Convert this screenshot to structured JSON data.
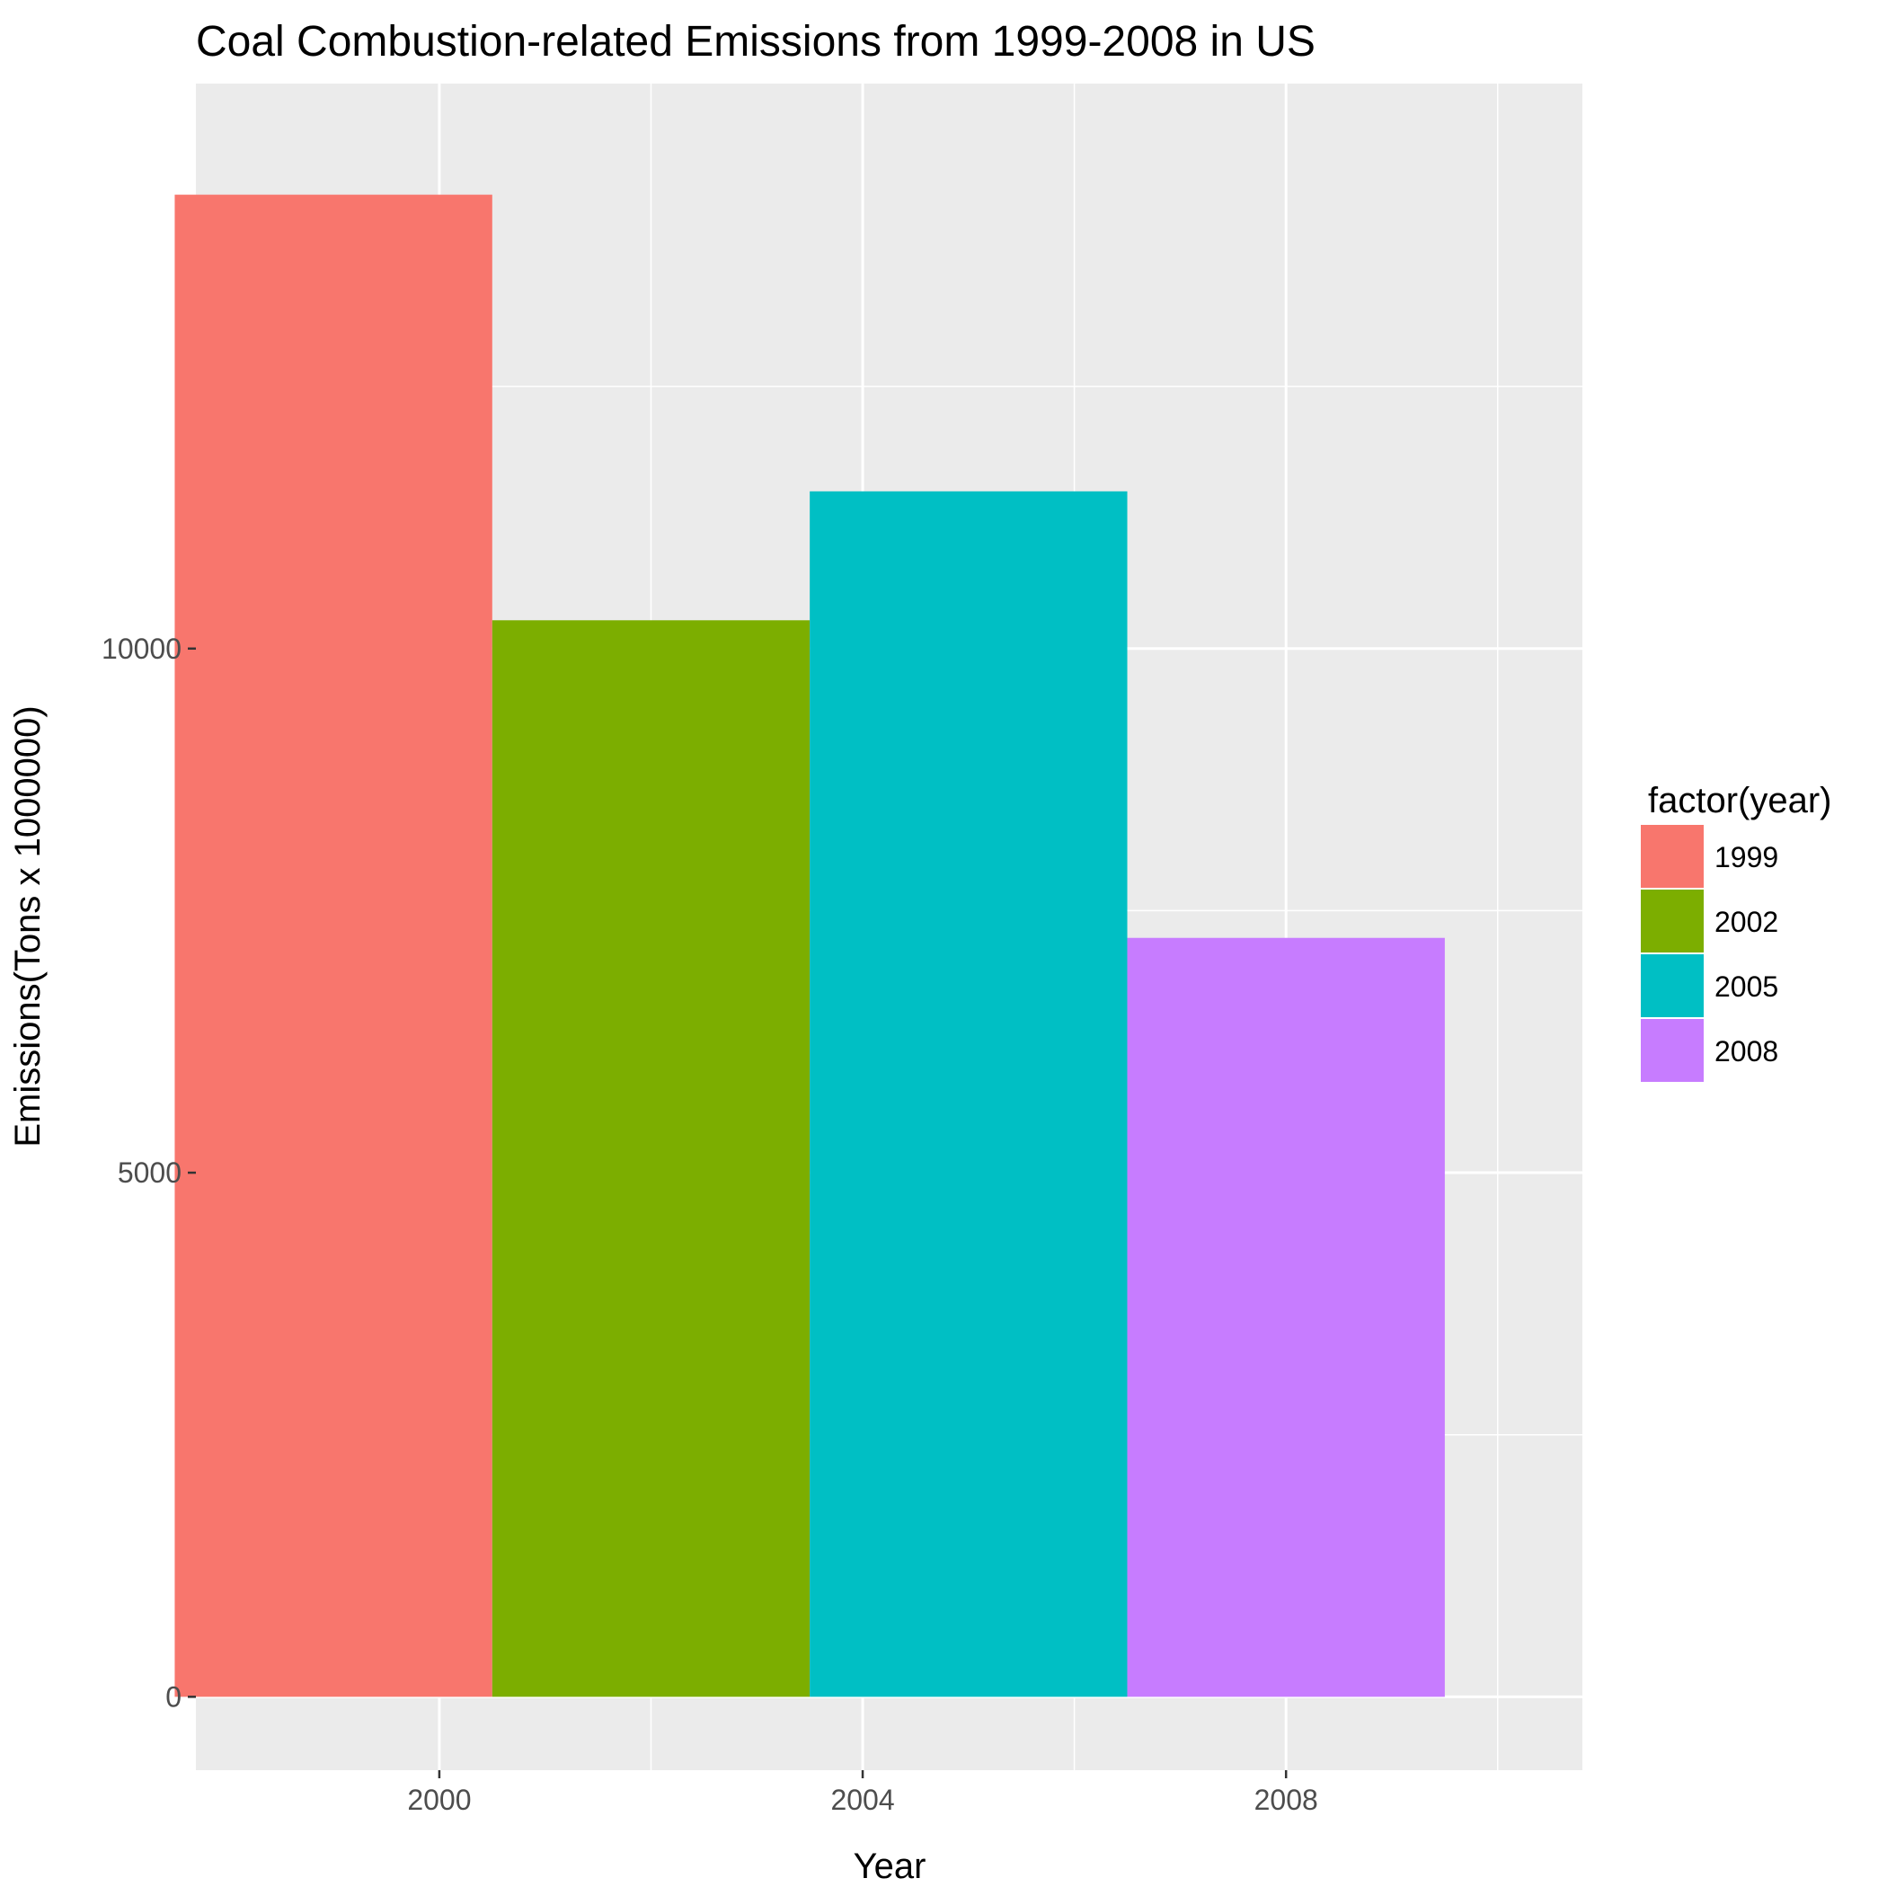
{
  "chart_data": {
    "type": "bar",
    "title": "Coal Combustion-related Emissions from 1999-2008 in US",
    "xlabel": "Year",
    "ylabel": "Emissions(Tons x 1000000)",
    "x": [
      1999,
      2002,
      2005,
      2008
    ],
    "values": [
      14330,
      10270,
      11500,
      7240
    ],
    "bar_width_years": 3,
    "fill_categories": [
      "1999",
      "2002",
      "2005",
      "2008"
    ],
    "colors": [
      "#F8766D",
      "#7CAE00",
      "#00BFC4",
      "#C77CFF"
    ],
    "xlim": [
      1997.7,
      2010.8
    ],
    "ylim": [
      -700,
      15390
    ],
    "x_ticks": [
      2000,
      2004,
      2008
    ],
    "x_tick_labels": [
      "2000",
      "2004",
      "2008"
    ],
    "y_ticks": [
      0,
      5000,
      10000
    ],
    "y_tick_labels": [
      "0",
      "5000",
      "10000"
    ],
    "legend": {
      "title": "factor(year)",
      "entries": [
        "1999",
        "2002",
        "2005",
        "2008"
      ],
      "placement": "right"
    },
    "grid": true,
    "panel_background": "#EBEBEB",
    "grid_color": "#FFFFFF"
  }
}
